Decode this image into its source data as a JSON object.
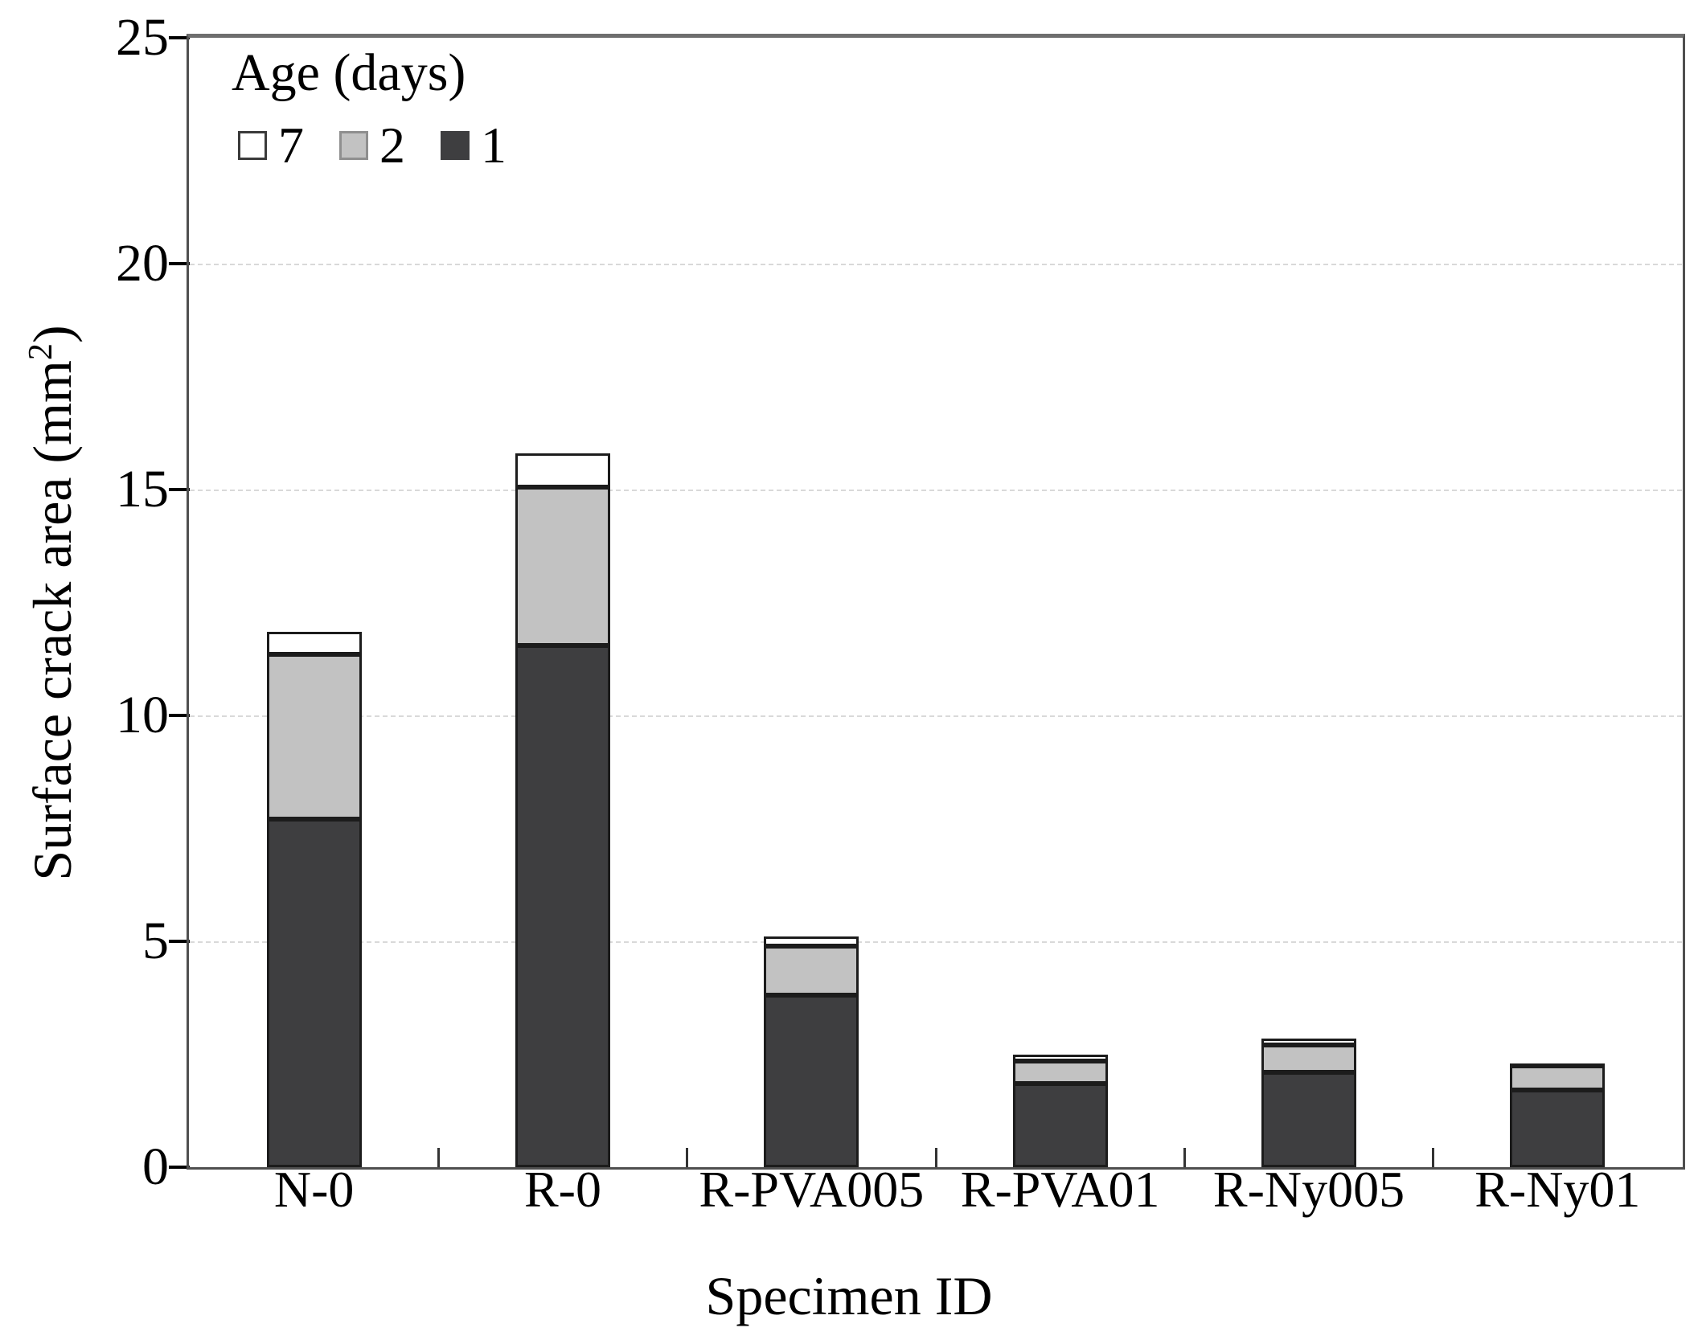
{
  "figure": {
    "background": "#ffffff"
  },
  "chart_data": {
    "type": "bar",
    "stacked": true,
    "title": "",
    "xlabel": "Specimen ID",
    "ylabel": {
      "text": "Surface crack area (mm",
      "sup": "2",
      "suffix": ")"
    },
    "categories": [
      "N-0",
      "R-0",
      "R-PVA005",
      "R-PVA01",
      "R-Ny005",
      "R-Ny01"
    ],
    "series": [
      {
        "name": "1",
        "age_days": 1,
        "color": "#3e3e40",
        "values": [
          7.7,
          11.55,
          3.8,
          1.85,
          2.1,
          1.7
        ]
      },
      {
        "name": "2",
        "age_days": 2,
        "color": "#c2c2c2",
        "values": [
          3.65,
          3.5,
          1.1,
          0.5,
          0.6,
          0.55
        ]
      },
      {
        "name": "7",
        "age_days": 7,
        "color": "#ffffff",
        "values": [
          0.5,
          0.75,
          0.2,
          0.15,
          0.15,
          0.05
        ]
      }
    ],
    "totals": [
      11.85,
      15.8,
      5.1,
      2.5,
      2.85,
      2.3
    ],
    "ylim": [
      0,
      25
    ],
    "yticks": [
      0,
      5,
      10,
      15,
      20,
      25
    ],
    "gridlines": {
      "values": [
        5,
        10,
        15,
        20
      ],
      "style": "dashed",
      "color": "#d9d9d9"
    },
    "legend": {
      "title": "Age (days)",
      "position": "top-left",
      "entries": [
        {
          "label": "7",
          "fill": "#ffffff",
          "border": "#3a3a3a"
        },
        {
          "label": "2",
          "fill": "#c2c2c2",
          "border": "#8f8f8f"
        },
        {
          "label": "1",
          "fill": "#3e3e40",
          "border": "#3e3e40"
        }
      ]
    },
    "bar_border_color": "#1c1c1c"
  }
}
